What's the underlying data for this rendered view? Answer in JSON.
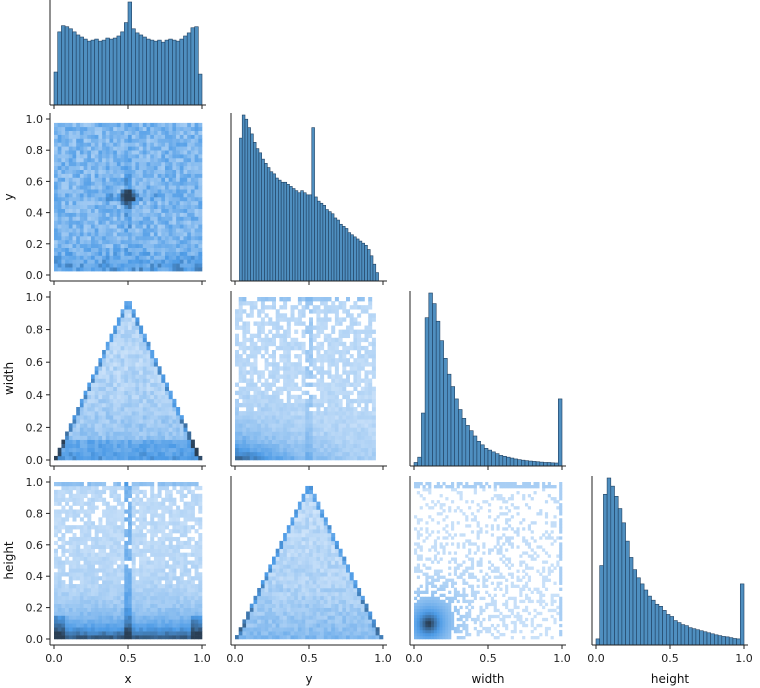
{
  "chart_data": {
    "type": "pairplot",
    "variables": [
      "x",
      "y",
      "width",
      "height"
    ],
    "diag_type": "histogram",
    "offdiag_type": "2d-histogram",
    "corner": true,
    "colors": {
      "bar_fill": "#4f8fc0",
      "bar_edge": "#1f3f5f",
      "heat_light": "#d6e8fb",
      "heat_mid": "#4d9be6",
      "heat_dark": "#2a3f55"
    },
    "ticks": {
      "y_ticks": [
        "0.0",
        "0.2",
        "0.4",
        "0.6",
        "0.8",
        "1.0"
      ],
      "x_ticks": [
        "0.0",
        "0.5",
        "1.0"
      ]
    },
    "axis_ranges": {
      "x": [
        0,
        1
      ],
      "y": [
        0,
        1
      ],
      "width": [
        0,
        1
      ],
      "height": [
        0,
        1
      ]
    },
    "histograms": {
      "x": {
        "bin_range": [
          0,
          1
        ],
        "bins": 40,
        "values": [
          0.32,
          0.71,
          0.77,
          0.76,
          0.74,
          0.71,
          0.68,
          0.66,
          0.64,
          0.62,
          0.63,
          0.64,
          0.62,
          0.63,
          0.65,
          0.64,
          0.65,
          0.67,
          0.71,
          0.8,
          1.0,
          0.74,
          0.7,
          0.68,
          0.66,
          0.64,
          0.63,
          0.62,
          0.63,
          0.61,
          0.63,
          0.64,
          0.63,
          0.62,
          0.64,
          0.67,
          0.7,
          0.75,
          0.76,
          0.3
        ]
      },
      "y": {
        "bin_range": [
          0.03,
          0.97
        ],
        "bins": 50,
        "values": [
          0.68,
          0.79,
          0.77,
          0.73,
          0.7,
          0.66,
          0.63,
          0.61,
          0.58,
          0.56,
          0.54,
          0.52,
          0.51,
          0.49,
          0.48,
          0.47,
          0.47,
          0.46,
          0.45,
          0.44,
          0.43,
          0.42,
          0.43,
          0.42,
          0.41,
          0.41,
          0.73,
          0.4,
          0.38,
          0.37,
          0.36,
          0.34,
          0.33,
          0.32,
          0.3,
          0.29,
          0.27,
          0.26,
          0.25,
          0.23,
          0.22,
          0.21,
          0.2,
          0.19,
          0.18,
          0.17,
          0.15,
          0.12,
          0.08,
          0.04
        ]
      },
      "width": {
        "bin_range": [
          0,
          1
        ],
        "bins": 40,
        "values": [
          0.02,
          0.05,
          0.3,
          0.84,
          0.98,
          0.92,
          0.82,
          0.71,
          0.61,
          0.52,
          0.45,
          0.38,
          0.32,
          0.27,
          0.23,
          0.2,
          0.17,
          0.14,
          0.12,
          0.1,
          0.09,
          0.08,
          0.07,
          0.06,
          0.055,
          0.05,
          0.045,
          0.04,
          0.036,
          0.033,
          0.03,
          0.028,
          0.026,
          0.024,
          0.022,
          0.02,
          0.02,
          0.018,
          0.017,
          0.38
        ]
      },
      "height": {
        "bin_range": [
          0,
          1
        ],
        "bins": 40,
        "values": [
          0.03,
          0.39,
          0.74,
          0.82,
          0.78,
          0.73,
          0.67,
          0.6,
          0.51,
          0.43,
          0.37,
          0.33,
          0.3,
          0.27,
          0.24,
          0.22,
          0.2,
          0.19,
          0.17,
          0.15,
          0.14,
          0.12,
          0.11,
          0.1,
          0.095,
          0.085,
          0.08,
          0.075,
          0.07,
          0.065,
          0.06,
          0.055,
          0.05,
          0.046,
          0.042,
          0.04,
          0.036,
          0.032,
          0.03,
          0.3
        ]
      }
    },
    "joint_descriptions": [
      {
        "row": "y",
        "col": "x",
        "shape": "uniform square with dark spike at x=0.5, y=0.5 and dense band at y<0.2"
      },
      {
        "row": "width",
        "col": "x",
        "shape": "triangle bounded by width <= 2*min(x,1-x), peak at x=0.5"
      },
      {
        "row": "width",
        "col": "y",
        "shape": "dense at low width and low y, sparse above; band at width=1.0"
      },
      {
        "row": "height",
        "col": "x",
        "shape": "dense at low height, vertical band at x=0.5, top band at height=1.0"
      },
      {
        "row": "height",
        "col": "y",
        "shape": "triangle bounded by height <= 2*min(y,1-y), peak at y=0.5"
      },
      {
        "row": "height",
        "col": "width",
        "shape": "correlated, dense near (0.1,0.1), diffuse up to (1,1)"
      }
    ]
  }
}
